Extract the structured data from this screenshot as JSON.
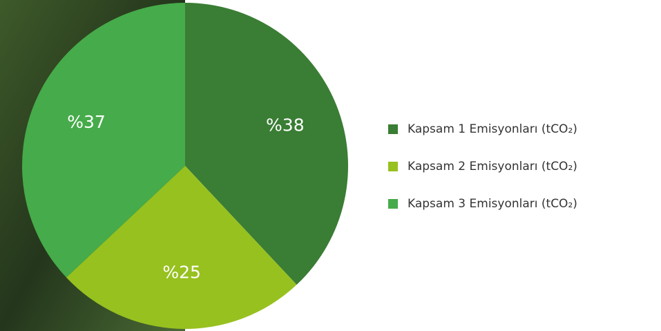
{
  "chart_data": {
    "type": "pie",
    "categories": [
      "Kapsam 1 Emisyonları (tCO₂)",
      "Kapsam 2 Emisyonları (tCO₂)",
      "Kapsam 3 Emisyonları (tCO₂)"
    ],
    "values": [
      38,
      25,
      37
    ],
    "value_labels": [
      "%38",
      "%25",
      "%37"
    ],
    "colors": [
      "#3a7d34",
      "#97c11f",
      "#46ab4a"
    ],
    "legend": "right"
  }
}
